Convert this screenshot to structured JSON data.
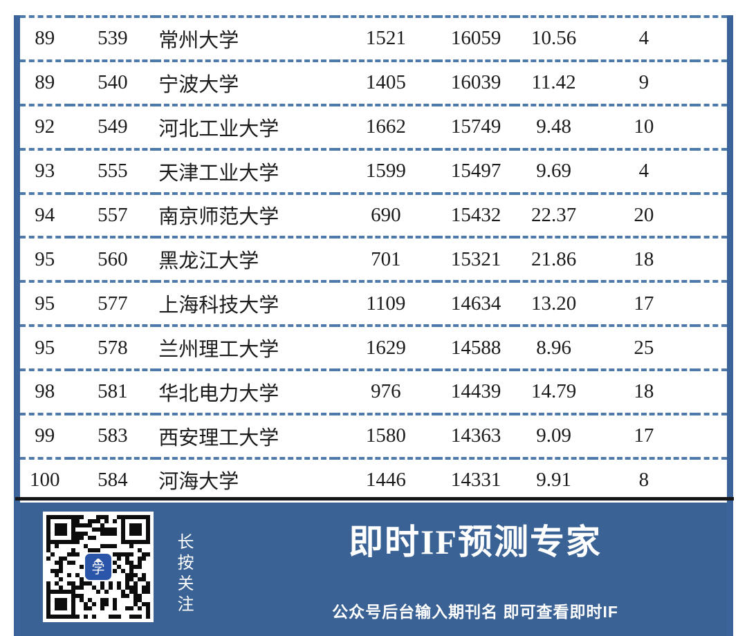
{
  "table": {
    "column_keys": [
      "rank",
      "rank2",
      "university",
      "col4",
      "col5",
      "col6",
      "col7"
    ],
    "rows": [
      [
        "89",
        "539",
        "常州大学",
        "1521",
        "16059",
        "10.56",
        "4"
      ],
      [
        "89",
        "540",
        "宁波大学",
        "1405",
        "16039",
        "11.42",
        "9"
      ],
      [
        "92",
        "549",
        "河北工业大学",
        "1662",
        "15749",
        "9.48",
        "10"
      ],
      [
        "93",
        "555",
        "天津工业大学",
        "1599",
        "15497",
        "9.69",
        "4"
      ],
      [
        "94",
        "557",
        "南京师范大学",
        "690",
        "15432",
        "22.37",
        "20"
      ],
      [
        "95",
        "560",
        "黑龙江大学",
        "701",
        "15321",
        "21.86",
        "18"
      ],
      [
        "95",
        "577",
        "上海科技大学",
        "1109",
        "14634",
        "13.20",
        "17"
      ],
      [
        "95",
        "578",
        "兰州理工大学",
        "1629",
        "14588",
        "8.96",
        "25"
      ],
      [
        "98",
        "581",
        "华北电力大学",
        "976",
        "14439",
        "14.79",
        "18"
      ],
      [
        "99",
        "583",
        "西安理工大学",
        "1580",
        "14363",
        "9.09",
        "17"
      ],
      [
        "100",
        "584",
        "河海大学",
        "1446",
        "14331",
        "9.91",
        "8"
      ]
    ],
    "dash_border_color": "#4e79ab",
    "side_border_color": "#3d649a",
    "bottom_line_color": "#161616",
    "text_color": "#1b1b1b"
  },
  "footer": {
    "background": "#3a6294",
    "text_color": "#ffffff",
    "follow_text": "长按关注",
    "title": "即时IF预测专家",
    "subtitle": "公众号后台输入期刊名  即可查看即时IF",
    "qr_logo_char": "学",
    "qr_logo_color": "#2b55a8"
  }
}
